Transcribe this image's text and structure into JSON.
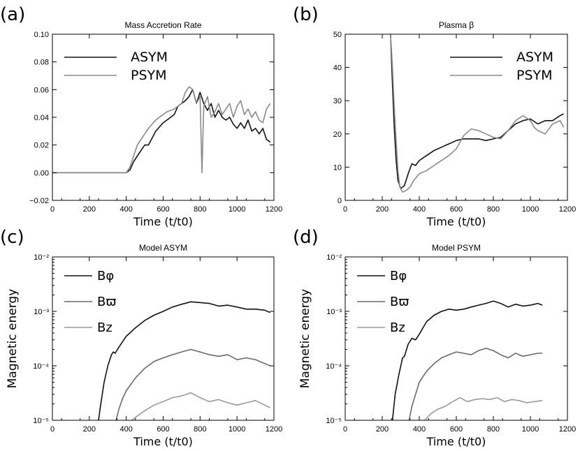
{
  "chart_data": [
    {
      "id": "a",
      "panel_label": "(a)",
      "type": "line",
      "title": "Mass Accretion Rate",
      "xlabel": "Time (t/t0)",
      "ylabel": "",
      "yscale": "linear",
      "xlim": [
        0,
        1200
      ],
      "ylim": [
        -0.02,
        0.1
      ],
      "xticks": [
        0,
        200,
        400,
        600,
        800,
        1000,
        1200
      ],
      "xtick_labels": [
        "0",
        "200",
        "400",
        "600",
        "800",
        "1000",
        "1200"
      ],
      "yticks": [
        -0.02,
        0.0,
        0.02,
        0.04,
        0.06,
        0.08,
        0.1
      ],
      "ytick_labels": [
        "−0.02",
        "0.00",
        "0.02",
        "0.04",
        "0.06",
        "0.08",
        "0.10"
      ],
      "legend_position": "top-left",
      "series": [
        {
          "name": "ASYM",
          "color": "#111111",
          "x": [
            0,
            100,
            200,
            300,
            400,
            420,
            440,
            460,
            480,
            500,
            520,
            540,
            560,
            580,
            600,
            620,
            640,
            660,
            680,
            700,
            720,
            740,
            760,
            780,
            800,
            820,
            840,
            860,
            880,
            900,
            920,
            940,
            960,
            980,
            1000,
            1020,
            1040,
            1060,
            1080,
            1100,
            1120,
            1140,
            1160,
            1180
          ],
          "y": [
            0,
            0,
            0,
            0,
            0,
            0.002,
            0.008,
            0.012,
            0.016,
            0.02,
            0.02,
            0.025,
            0.03,
            0.033,
            0.036,
            0.038,
            0.04,
            0.042,
            0.048,
            0.05,
            0.052,
            0.055,
            0.06,
            0.05,
            0.058,
            0.05,
            0.045,
            0.05,
            0.04,
            0.045,
            0.04,
            0.038,
            0.04,
            0.035,
            0.032,
            0.036,
            0.032,
            0.038,
            0.03,
            0.032,
            0.028,
            0.032,
            0.024,
            0.022
          ]
        },
        {
          "name": "PSYM",
          "color": "#8a8a8a",
          "x": [
            0,
            100,
            200,
            300,
            400,
            420,
            440,
            460,
            480,
            500,
            520,
            540,
            560,
            580,
            600,
            620,
            640,
            660,
            680,
            700,
            720,
            740,
            760,
            780,
            800,
            810,
            820,
            840,
            860,
            880,
            900,
            920,
            940,
            960,
            980,
            1000,
            1020,
            1040,
            1060,
            1080,
            1100,
            1120,
            1140,
            1160,
            1180
          ],
          "y": [
            0,
            0,
            0,
            0,
            0,
            0.004,
            0.012,
            0.02,
            0.024,
            0.028,
            0.032,
            0.035,
            0.038,
            0.04,
            0.042,
            0.044,
            0.045,
            0.046,
            0.048,
            0.05,
            0.058,
            0.062,
            0.06,
            0.05,
            0.055,
            0.0,
            0.048,
            0.055,
            0.04,
            0.044,
            0.05,
            0.042,
            0.046,
            0.05,
            0.04,
            0.048,
            0.052,
            0.042,
            0.046,
            0.04,
            0.044,
            0.038,
            0.036,
            0.046,
            0.05
          ]
        }
      ]
    },
    {
      "id": "b",
      "panel_label": "(b)",
      "type": "line",
      "title": "Plasma β",
      "xlabel": "Time (t/t0)",
      "ylabel": "",
      "yscale": "linear",
      "xlim": [
        0,
        1200
      ],
      "ylim": [
        0,
        50
      ],
      "xticks": [
        0,
        200,
        400,
        600,
        800,
        1000,
        1200
      ],
      "xtick_labels": [
        "0",
        "200",
        "400",
        "600",
        "800",
        "1000",
        "1200"
      ],
      "yticks": [
        0,
        10,
        20,
        30,
        40,
        50
      ],
      "ytick_labels": [
        "0",
        "10",
        "20",
        "30",
        "40",
        "50"
      ],
      "legend_position": "top-right",
      "series": [
        {
          "name": "ASYM",
          "color": "#111111",
          "x": [
            245,
            255,
            265,
            275,
            285,
            300,
            320,
            340,
            360,
            380,
            400,
            440,
            480,
            520,
            560,
            600,
            640,
            680,
            720,
            760,
            800,
            840,
            880,
            920,
            960,
            1000,
            1040,
            1080,
            1120,
            1160,
            1180
          ],
          "y": [
            50,
            35,
            22,
            12,
            6,
            3.5,
            4.5,
            8,
            11,
            10.5,
            12,
            13.5,
            15,
            16,
            17,
            18,
            18.5,
            18.5,
            18.5,
            18,
            18.5,
            19,
            21,
            23,
            24,
            24.5,
            23,
            24,
            24,
            25.5,
            26
          ]
        },
        {
          "name": "PSYM",
          "color": "#8a8a8a",
          "x": [
            245,
            255,
            265,
            275,
            285,
            295,
            310,
            330,
            350,
            370,
            400,
            440,
            480,
            520,
            560,
            600,
            640,
            680,
            720,
            760,
            800,
            840,
            880,
            920,
            960,
            1000,
            1020,
            1040,
            1080,
            1120,
            1160,
            1180
          ],
          "y": [
            50,
            40,
            28,
            18,
            9,
            4,
            2.5,
            3,
            4,
            6,
            8,
            9,
            10.5,
            12,
            13.5,
            15.5,
            19.5,
            21.5,
            21,
            20,
            19,
            18.5,
            21,
            24,
            25.5,
            24,
            22,
            21,
            20,
            23,
            24,
            22
          ]
        }
      ]
    },
    {
      "id": "c",
      "panel_label": "(c)",
      "type": "line",
      "title": "Model ASYM",
      "xlabel": "Time (t/t0)",
      "ylabel": "Magnetic energy",
      "yscale": "log",
      "xlim": [
        0,
        1200
      ],
      "ylim": [
        1e-05,
        0.01
      ],
      "xticks": [
        0,
        200,
        400,
        600,
        800,
        1000,
        1200
      ],
      "xtick_labels": [
        "0",
        "200",
        "400",
        "600",
        "800",
        "1000",
        "1200"
      ],
      "yticks": [
        1e-05,
        0.0001,
        0.001,
        0.01
      ],
      "ytick_labels": [
        "10⁻⁵",
        "10⁻⁴",
        "10⁻³",
        "10⁻²"
      ],
      "legend_position": "top-left",
      "series": [
        {
          "name": "Bφ",
          "color": "#111111",
          "x": [
            250,
            260,
            280,
            300,
            320,
            330,
            340,
            360,
            400,
            450,
            500,
            550,
            600,
            650,
            700,
            750,
            800,
            850,
            900,
            950,
            1000,
            1050,
            1100,
            1150,
            1180
          ],
          "y": [
            1e-05,
            1.8e-05,
            5e-05,
            0.0001,
            0.00016,
            0.00018,
            0.00017,
            0.00022,
            0.00035,
            0.0005,
            0.00068,
            0.00085,
            0.001,
            0.0012,
            0.00135,
            0.0015,
            0.00145,
            0.0014,
            0.00125,
            0.0013,
            0.0012,
            0.0011,
            0.0011,
            0.00105,
            0.00095
          ]
        },
        {
          "name": "Bϖ",
          "color": "#6a6a6a",
          "x": [
            345,
            360,
            380,
            400,
            450,
            500,
            550,
            600,
            650,
            700,
            750,
            800,
            850,
            900,
            950,
            1000,
            1050,
            1100,
            1150,
            1180
          ],
          "y": [
            1e-05,
            1.6e-05,
            2.5e-05,
            3.5e-05,
            6e-05,
            9e-05,
            0.00012,
            0.00014,
            0.00016,
            0.00018,
            0.0002,
            0.00018,
            0.00016,
            0.00015,
            0.00016,
            0.00013,
            0.00014,
            0.00013,
            0.00011,
            0.0001
          ]
        },
        {
          "name": "Bz",
          "color": "#9a9a9a",
          "x": [
            430,
            460,
            500,
            550,
            600,
            650,
            700,
            750,
            800,
            850,
            900,
            950,
            1000,
            1050,
            1100,
            1150,
            1180
          ],
          "y": [
            1e-05,
            1.2e-05,
            1.5e-05,
            1.9e-05,
            2.2e-05,
            2.6e-05,
            2.8e-05,
            3.2e-05,
            2.6e-05,
            2.2e-05,
            2.4e-05,
            2.1e-05,
            1.9e-05,
            2.1e-05,
            2.3e-05,
            1.9e-05,
            1.7e-05
          ]
        }
      ]
    },
    {
      "id": "d",
      "panel_label": "(d)",
      "type": "line",
      "title": "Model PSYM",
      "xlabel": "Time (t/t0)",
      "ylabel": "Magnetic energy",
      "yscale": "log",
      "xlim": [
        0,
        1200
      ],
      "ylim": [
        1e-05,
        0.01
      ],
      "xticks": [
        0,
        200,
        400,
        600,
        800,
        1000,
        1200
      ],
      "xtick_labels": [
        "0",
        "200",
        "400",
        "600",
        "800",
        "1000",
        "1200"
      ],
      "yticks": [
        1e-05,
        0.0001,
        0.001,
        0.01
      ],
      "ytick_labels": [
        "10⁻⁵",
        "10⁻⁴",
        "10⁻³",
        "10⁻²"
      ],
      "legend_position": "top-left",
      "series": [
        {
          "name": "Bφ",
          "color": "#111111",
          "x": [
            255,
            270,
            290,
            310,
            320,
            340,
            360,
            380,
            400,
            420,
            440,
            480,
            520,
            560,
            600,
            640,
            680,
            720,
            760,
            800,
            840,
            880,
            920,
            960,
            1000,
            1040,
            1065
          ],
          "y": [
            1e-05,
            3e-05,
            7e-05,
            0.00014,
            0.00015,
            0.00025,
            0.00032,
            0.0003,
            0.00038,
            0.0005,
            0.00065,
            0.00085,
            0.001,
            0.0011,
            0.00105,
            0.0011,
            0.0012,
            0.0013,
            0.0014,
            0.00155,
            0.0014,
            0.0012,
            0.00135,
            0.00125,
            0.0013,
            0.0014,
            0.0013
          ]
        },
        {
          "name": "Bϖ",
          "color": "#6a6a6a",
          "x": [
            345,
            360,
            380,
            400,
            440,
            480,
            520,
            560,
            600,
            640,
            680,
            720,
            760,
            800,
            840,
            880,
            920,
            960,
            1000,
            1040,
            1065
          ],
          "y": [
            1e-05,
            1.8e-05,
            3e-05,
            5e-05,
            8e-05,
            0.00011,
            0.00014,
            0.00016,
            0.00018,
            0.00017,
            0.00016,
            0.00019,
            0.00021,
            0.00019,
            0.00016,
            0.00014,
            0.00017,
            0.00015,
            0.00016,
            0.00017,
            0.00017
          ]
        },
        {
          "name": "Bz",
          "color": "#9a9a9a",
          "x": [
            430,
            460,
            500,
            540,
            580,
            620,
            660,
            700,
            740,
            780,
            820,
            860,
            900,
            940,
            980,
            1020,
            1065
          ],
          "y": [
            1e-05,
            1.3e-05,
            1.6e-05,
            1.8e-05,
            2.2e-05,
            2.6e-05,
            2.2e-05,
            2.4e-05,
            2.5e-05,
            2.4e-05,
            2.6e-05,
            2.2e-05,
            2.4e-05,
            2.3e-05,
            2.1e-05,
            2.2e-05,
            2.3e-05
          ]
        }
      ]
    }
  ]
}
